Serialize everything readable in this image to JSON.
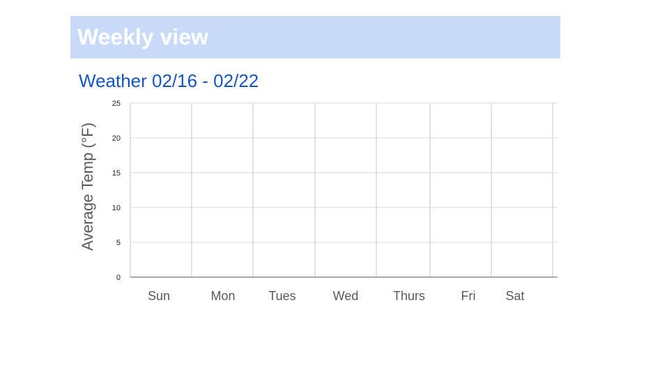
{
  "header": {
    "title": "Weekly view"
  },
  "chart_data": {
    "type": "line",
    "title": "Weather 02/16 - 02/22",
    "xlabel": "",
    "ylabel": "Average Temp (°F)",
    "categories": [
      "Sun",
      "Mon",
      "Tues",
      "Wed",
      "Thurs",
      "Fri",
      "Sat"
    ],
    "series": [
      {
        "values": [
          0,
          0,
          0,
          0,
          0,
          0,
          0
        ]
      }
    ],
    "ylim": [
      0,
      25
    ],
    "yticks": [
      0,
      5,
      10,
      15,
      20,
      25
    ],
    "grid": true,
    "colors": {
      "grid": "#d9d9d9",
      "axis": "#999999",
      "series": "#9e9e9e",
      "banner": "#c9daf8",
      "title": "#1155cc"
    }
  }
}
